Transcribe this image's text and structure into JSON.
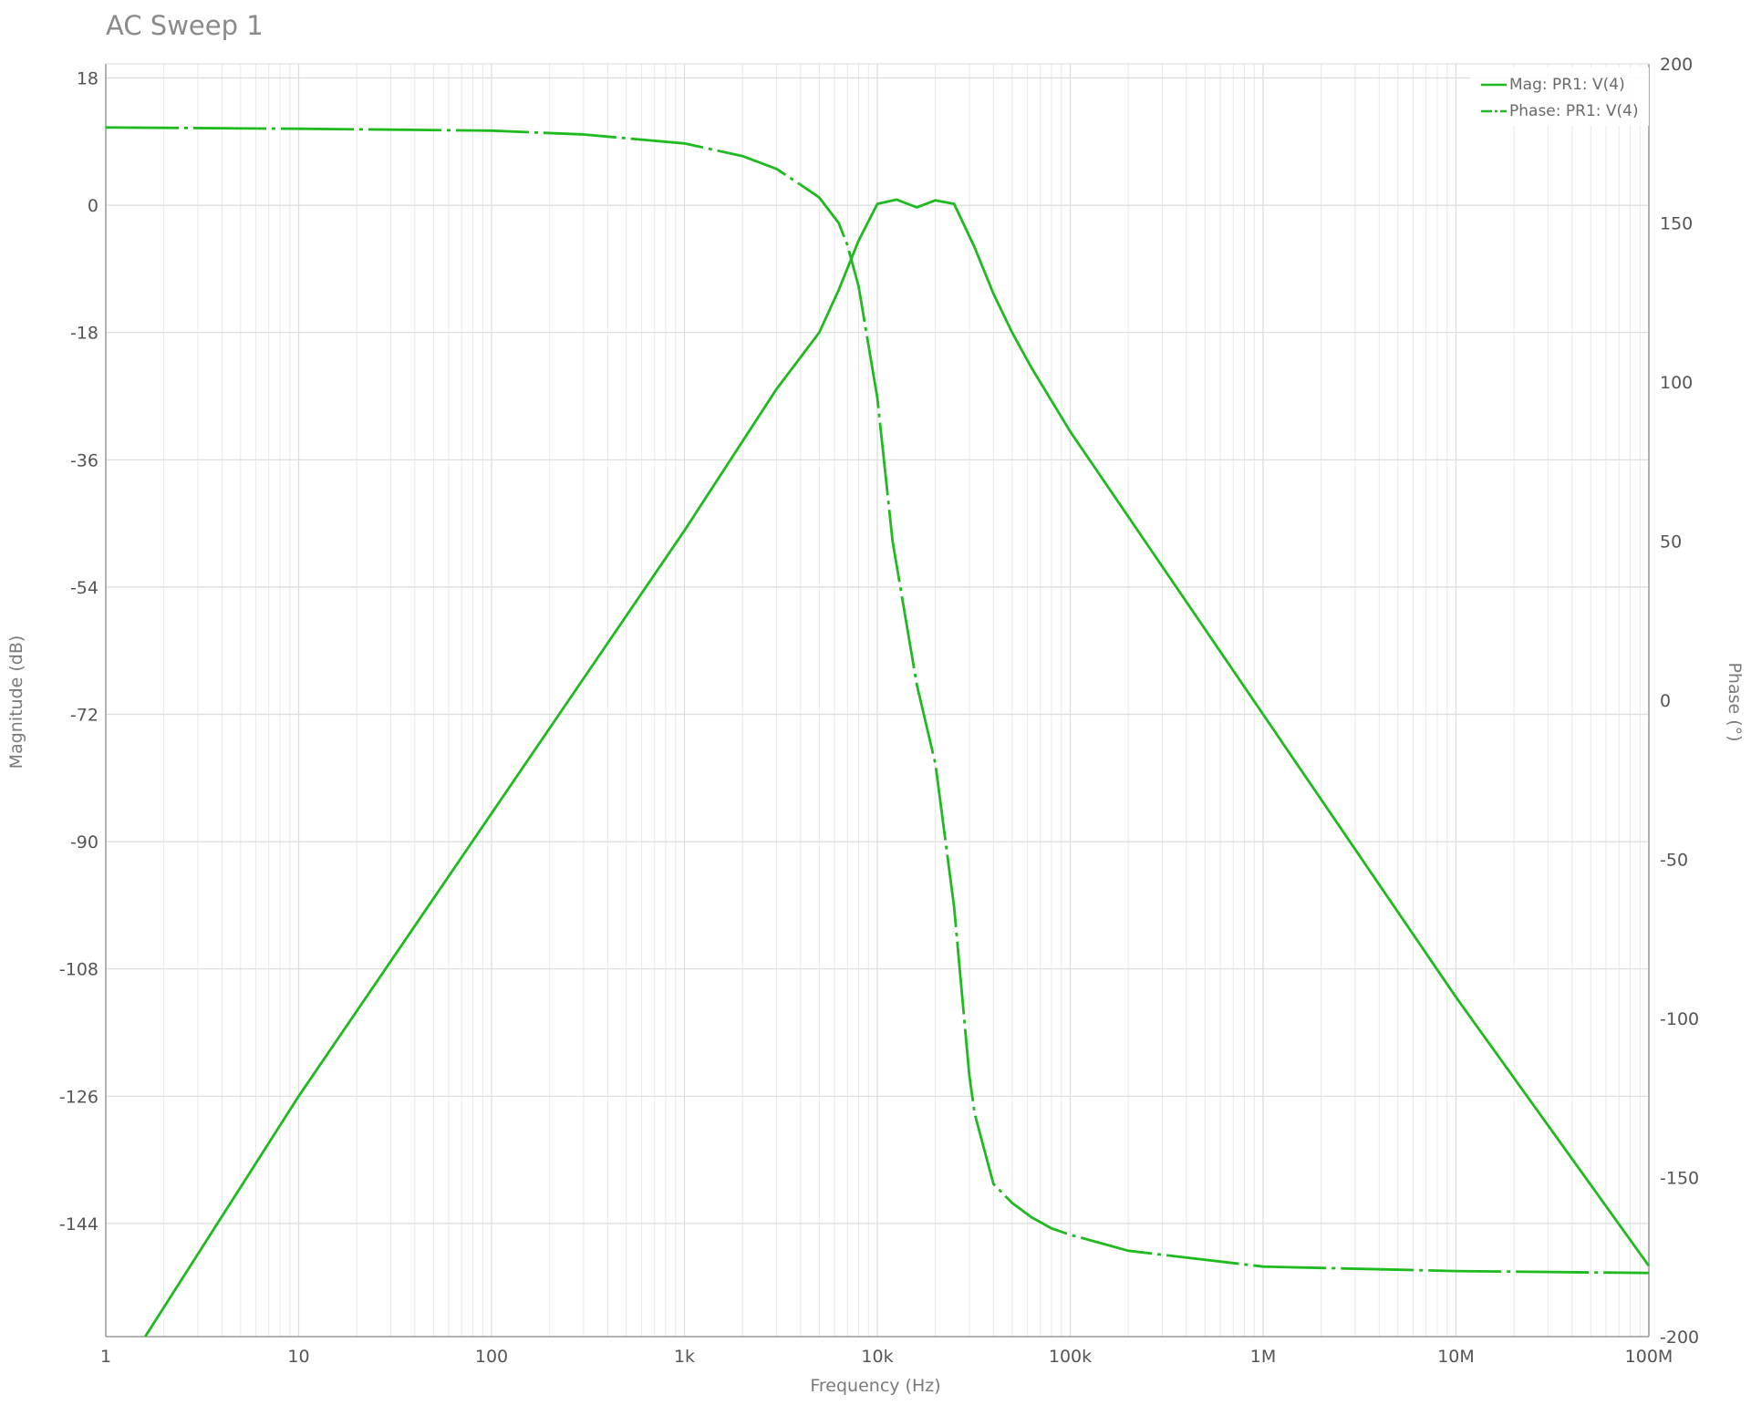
{
  "chart_data": {
    "type": "line",
    "title": "AC Sweep 1",
    "xlabel": "Frequency (Hz)",
    "ylabel": "Magnitude (dB)",
    "y2label": "Phase (°)",
    "x_scale": "log",
    "xlim": [
      1,
      100000000
    ],
    "ylim": [
      -160,
      20
    ],
    "y2lim": [
      -200,
      200
    ],
    "x_ticks": [
      1,
      10,
      100,
      1000,
      10000,
      100000,
      1000000,
      10000000,
      100000000
    ],
    "x_tick_labels": [
      "1",
      "10",
      "100",
      "1k",
      "10k",
      "100k",
      "1M",
      "10M",
      "100M"
    ],
    "y_ticks": [
      18,
      0,
      -18,
      -36,
      -54,
      -72,
      -90,
      -108,
      -126,
      -144
    ],
    "y_tick_labels": [
      "18",
      "0",
      "-18",
      "-36",
      "-54",
      "-72",
      "-90",
      "-108",
      "-126",
      "-144"
    ],
    "y2_ticks": [
      200,
      150,
      100,
      50,
      0,
      -50,
      -100,
      -150,
      -200
    ],
    "y2_tick_labels": [
      "200",
      "150",
      "100",
      "50",
      "0",
      "-50",
      "-100",
      "-150",
      "-200"
    ],
    "grid": true,
    "legend_position": "top-right",
    "series": [
      {
        "name": "Mag: PR1: V(4)",
        "axis": "left",
        "style": "solid",
        "color": "#1fba1f",
        "x": [
          1.6,
          10,
          100,
          1000,
          3000,
          5000,
          6300,
          8000,
          10000,
          12600,
          16000,
          20000,
          25000,
          32000,
          40000,
          50000,
          63000,
          100000,
          1000000,
          10000000,
          100000000
        ],
        "y": [
          -160,
          -126,
          -86,
          -46,
          -26,
          -18,
          -12,
          -5,
          0.2,
          0.8,
          -0.3,
          0.7,
          0.2,
          -6,
          -12.5,
          -18,
          -23,
          -32,
          -72,
          -112,
          -150
        ]
      },
      {
        "name": "Phase: PR1: V(4)",
        "axis": "right",
        "style": "dashdot",
        "color": "#1fba1f",
        "x": [
          1,
          10,
          100,
          300,
          1000,
          2000,
          3000,
          4000,
          5000,
          6300,
          7000,
          8000,
          10000,
          12000,
          16000,
          20000,
          25000,
          30000,
          32000,
          40000,
          50000,
          63000,
          80000,
          100000,
          200000,
          1000000,
          10000000,
          100000000
        ],
        "y": [
          180,
          179.6,
          179,
          177.8,
          175,
          171,
          167,
          162,
          158,
          150,
          143,
          130,
          95,
          50,
          5,
          -20,
          -65,
          -118,
          -130,
          -152,
          -158,
          -162.5,
          -166,
          -168,
          -173,
          -178,
          -179.4,
          -180
        ]
      }
    ]
  }
}
